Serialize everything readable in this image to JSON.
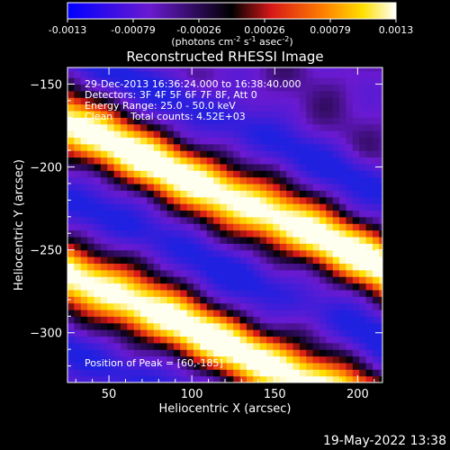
{
  "chart_data": {
    "type": "heatmap",
    "title": "Reconstructed RHESSI Image",
    "xlabel": "Heliocentric X (arcsec)",
    "ylabel": "Heliocentric Y (arcsec)",
    "xlim": [
      25,
      215
    ],
    "ylim": [
      -330,
      -140
    ],
    "xticks": [
      50,
      100,
      150,
      200
    ],
    "yticks": [
      -150,
      -200,
      -250,
      -300
    ],
    "colorbar": {
      "range": [
        -0.0013,
        0.0013
      ],
      "ticks": [
        "-0.0013",
        "-0.00079",
        "-0.00026",
        "0.00026",
        "0.00079",
        "0.0013"
      ],
      "unit_label": "(photons cm",
      "unit_sup1": "-2",
      "unit_mid1": " s",
      "unit_sup2": "-1",
      "unit_mid2": " asec",
      "unit_sup3": "-2",
      "unit_end": ")"
    },
    "annotations": {
      "time": "29-Dec-2013 16:36:24.000 to 16:38:40.000",
      "detectors": "Detectors: 3F 4F 5F 6F 7F 8F, Att 0",
      "energy": "Energy Range: 25.0 - 50.0 keV",
      "method": "Clean",
      "counts": "Total counts: 4.52E+03",
      "peak": "Position of Peak = [60,-185]"
    },
    "peak": [
      60,
      -185
    ],
    "bands_slope": -0.45,
    "bright_bands_y_at_x50": [
      -185,
      -275
    ],
    "dark_bands_y_at_x50": [
      -140,
      -230,
      -320
    ],
    "colors": {
      "deep_blue": "#2020e0",
      "purple": "#6a1ad0",
      "black": "#000000",
      "red": "#d81818",
      "orange": "#ff8000",
      "yellow": "#ffe000",
      "white": "#fffff0"
    }
  },
  "footer": {
    "date": "19-May-2022 13:38"
  }
}
